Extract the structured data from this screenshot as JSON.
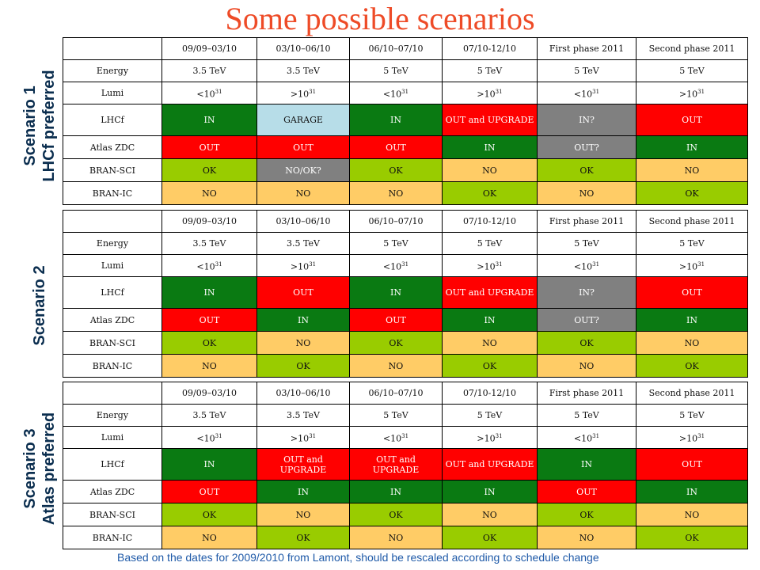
{
  "title": "Some possible scenarios",
  "footnote": "Based on the dates for 2009/2010 from Lamont, should be rescaled according to schedule change",
  "columns": [
    "09/09–03/10",
    "03/10–06/10",
    "06/10–07/10",
    "07/10-12/10",
    "First phase 2011",
    "Second phase 2011"
  ],
  "scenarios": [
    {
      "label_line1": "Scenario 1",
      "label_line2": "LHCf preferred",
      "rows": [
        {
          "name": "Energy",
          "cells": [
            {
              "t": "3.5 TeV",
              "c": "white"
            },
            {
              "t": "3.5 TeV",
              "c": "white"
            },
            {
              "t": "5 TeV",
              "c": "white"
            },
            {
              "t": "5 TeV",
              "c": "white"
            },
            {
              "t": "5 TeV",
              "c": "white"
            },
            {
              "t": "5 TeV",
              "c": "white"
            }
          ]
        },
        {
          "name": "Lumi",
          "cells": [
            {
              "t": "<10",
              "sup": "31",
              "c": "white"
            },
            {
              "t": ">10",
              "sup": "31",
              "c": "white"
            },
            {
              "t": "<10",
              "sup": "31",
              "c": "white"
            },
            {
              "t": ">10",
              "sup": "31",
              "c": "white"
            },
            {
              "t": "<10",
              "sup": "31",
              "c": "white"
            },
            {
              "t": ">10",
              "sup": "31",
              "c": "white"
            }
          ]
        },
        {
          "name": "LHCf",
          "cells": [
            {
              "t": "IN",
              "c": "green"
            },
            {
              "t": "GARAGE",
              "c": "lblue"
            },
            {
              "t": "IN",
              "c": "green"
            },
            {
              "t": "OUT and UPGRADE",
              "c": "red"
            },
            {
              "t": "IN?",
              "c": "gray"
            },
            {
              "t": "OUT",
              "c": "red"
            }
          ]
        },
        {
          "name": "Atlas ZDC",
          "cells": [
            {
              "t": "OUT",
              "c": "red"
            },
            {
              "t": "OUT",
              "c": "red"
            },
            {
              "t": "OUT",
              "c": "red"
            },
            {
              "t": "IN",
              "c": "green"
            },
            {
              "t": "OUT?",
              "c": "gray"
            },
            {
              "t": "IN",
              "c": "green"
            }
          ]
        },
        {
          "name": "BRAN-SCI",
          "cells": [
            {
              "t": "OK",
              "c": "lgreen"
            },
            {
              "t": "NO/OK?",
              "c": "gray"
            },
            {
              "t": "OK",
              "c": "lgreen"
            },
            {
              "t": "NO",
              "c": "orange"
            },
            {
              "t": "OK",
              "c": "lgreen"
            },
            {
              "t": "NO",
              "c": "orange"
            }
          ]
        },
        {
          "name": "BRAN-IC",
          "cells": [
            {
              "t": "NO",
              "c": "orange"
            },
            {
              "t": "NO",
              "c": "orange"
            },
            {
              "t": "NO",
              "c": "orange"
            },
            {
              "t": "OK",
              "c": "lgreen"
            },
            {
              "t": "NO",
              "c": "orange"
            },
            {
              "t": "OK",
              "c": "lgreen"
            }
          ]
        }
      ]
    },
    {
      "label_line1": "Scenario 2",
      "label_line2": "",
      "rows": [
        {
          "name": "Energy",
          "cells": [
            {
              "t": "3.5 TeV",
              "c": "white"
            },
            {
              "t": "3.5 TeV",
              "c": "white"
            },
            {
              "t": "5 TeV",
              "c": "white"
            },
            {
              "t": "5 TeV",
              "c": "white"
            },
            {
              "t": "5 TeV",
              "c": "white"
            },
            {
              "t": "5 TeV",
              "c": "white"
            }
          ]
        },
        {
          "name": "Lumi",
          "cells": [
            {
              "t": "<10",
              "sup": "31",
              "c": "white"
            },
            {
              "t": ">10",
              "sup": "31",
              "c": "white"
            },
            {
              "t": "<10",
              "sup": "31",
              "c": "white"
            },
            {
              "t": ">10",
              "sup": "31",
              "c": "white"
            },
            {
              "t": "<10",
              "sup": "31",
              "c": "white"
            },
            {
              "t": ">10",
              "sup": "31",
              "c": "white"
            }
          ]
        },
        {
          "name": "LHCf",
          "cells": [
            {
              "t": "IN",
              "c": "green"
            },
            {
              "t": "OUT",
              "c": "red"
            },
            {
              "t": "IN",
              "c": "green"
            },
            {
              "t": "OUT and UPGRADE",
              "c": "red"
            },
            {
              "t": "IN?",
              "c": "gray"
            },
            {
              "t": "OUT",
              "c": "red"
            }
          ]
        },
        {
          "name": "Atlas ZDC",
          "cells": [
            {
              "t": "OUT",
              "c": "red"
            },
            {
              "t": "IN",
              "c": "green"
            },
            {
              "t": "OUT",
              "c": "red"
            },
            {
              "t": "IN",
              "c": "green"
            },
            {
              "t": "OUT?",
              "c": "gray"
            },
            {
              "t": "IN",
              "c": "green"
            }
          ]
        },
        {
          "name": "BRAN-SCI",
          "cells": [
            {
              "t": "OK",
              "c": "lgreen"
            },
            {
              "t": "NO",
              "c": "orange"
            },
            {
              "t": "OK",
              "c": "lgreen"
            },
            {
              "t": "NO",
              "c": "orange"
            },
            {
              "t": "OK",
              "c": "lgreen"
            },
            {
              "t": "NO",
              "c": "orange"
            }
          ]
        },
        {
          "name": "BRAN-IC",
          "cells": [
            {
              "t": "NO",
              "c": "orange"
            },
            {
              "t": "OK",
              "c": "lgreen"
            },
            {
              "t": "NO",
              "c": "orange"
            },
            {
              "t": "OK",
              "c": "lgreen"
            },
            {
              "t": "NO",
              "c": "orange"
            },
            {
              "t": "OK",
              "c": "lgreen"
            }
          ]
        }
      ]
    },
    {
      "label_line1": "Scenario 3",
      "label_line2": "Atlas preferred",
      "rows": [
        {
          "name": "Energy",
          "cells": [
            {
              "t": "3.5 TeV",
              "c": "white"
            },
            {
              "t": "3.5 TeV",
              "c": "white"
            },
            {
              "t": "5 TeV",
              "c": "white"
            },
            {
              "t": "5 TeV",
              "c": "white"
            },
            {
              "t": "5 TeV",
              "c": "white"
            },
            {
              "t": "5 TeV",
              "c": "white"
            }
          ]
        },
        {
          "name": "Lumi",
          "cells": [
            {
              "t": "<10",
              "sup": "31",
              "c": "white"
            },
            {
              "t": ">10",
              "sup": "31",
              "c": "white"
            },
            {
              "t": "<10",
              "sup": "31",
              "c": "white"
            },
            {
              "t": ">10",
              "sup": "31",
              "c": "white"
            },
            {
              "t": "<10",
              "sup": "31",
              "c": "white"
            },
            {
              "t": ">10",
              "sup": "31",
              "c": "white"
            }
          ]
        },
        {
          "name": "LHCf",
          "cells": [
            {
              "t": "IN",
              "c": "green"
            },
            {
              "t": "OUT and UPGRADE",
              "c": "red"
            },
            {
              "t": "OUT and UPGRADE",
              "c": "red"
            },
            {
              "t": "OUT and UPGRADE",
              "c": "red"
            },
            {
              "t": "IN",
              "c": "green"
            },
            {
              "t": "OUT",
              "c": "red"
            }
          ]
        },
        {
          "name": "Atlas ZDC",
          "cells": [
            {
              "t": "OUT",
              "c": "red"
            },
            {
              "t": "IN",
              "c": "green"
            },
            {
              "t": "IN",
              "c": "green"
            },
            {
              "t": "IN",
              "c": "green"
            },
            {
              "t": "OUT",
              "c": "red"
            },
            {
              "t": "IN",
              "c": "green"
            }
          ]
        },
        {
          "name": "BRAN-SCI",
          "cells": [
            {
              "t": "OK",
              "c": "lgreen"
            },
            {
              "t": "NO",
              "c": "orange"
            },
            {
              "t": "OK",
              "c": "lgreen"
            },
            {
              "t": "NO",
              "c": "orange"
            },
            {
              "t": "OK",
              "c": "lgreen"
            },
            {
              "t": "NO",
              "c": "orange"
            }
          ]
        },
        {
          "name": "BRAN-IC",
          "cells": [
            {
              "t": "NO",
              "c": "orange"
            },
            {
              "t": "OK",
              "c": "lgreen"
            },
            {
              "t": "NO",
              "c": "orange"
            },
            {
              "t": "OK",
              "c": "lgreen"
            },
            {
              "t": "NO",
              "c": "orange"
            },
            {
              "t": "OK",
              "c": "lgreen"
            }
          ]
        }
      ]
    }
  ]
}
